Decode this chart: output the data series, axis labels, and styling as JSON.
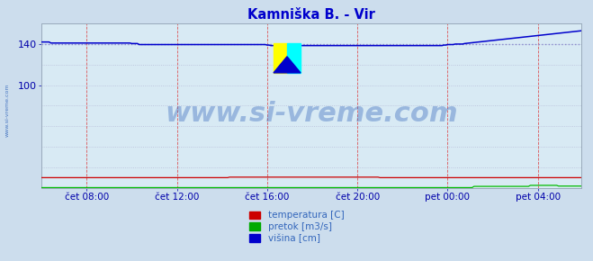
{
  "title": "Kamniška B. - Vir",
  "title_color": "#0000cc",
  "bg_color": "#ccdded",
  "plot_bg_color": "#d8eaf4",
  "grid_color_v": "#dd2222",
  "grid_color_h": "#aaaacc",
  "ylabel_color": "#0000aa",
  "xlabel_color": "#0000aa",
  "ylim": [
    0,
    160
  ],
  "xlim": [
    0,
    287
  ],
  "xtick_positions": [
    24,
    72,
    120,
    168,
    216,
    264
  ],
  "xtick_labels": [
    "čet 08:00",
    "čet 12:00",
    "čet 16:00",
    "čet 20:00",
    "pet 00:00",
    "pet 04:00"
  ],
  "watermark_text": "www.si-vreme.com",
  "watermark_color": "#3366bb",
  "watermark_alpha": 0.38,
  "watermark_fontsize": 22,
  "legend_entries": [
    "temperatura [C]",
    "pretok [m3/s]",
    "višina [cm]"
  ],
  "legend_colors": [
    "#cc0000",
    "#00aa00",
    "#0000cc"
  ],
  "line_color_temp": "#cc0000",
  "line_color_pretok": "#00bb00",
  "line_color_visina": "#0000cc",
  "dotted_color": "#8888cc",
  "left_label": "www.si-vreme.com",
  "left_label_color": "#3366bb",
  "n_points": 288,
  "visina_base": 140.0,
  "temp_base": 10.0,
  "pretok_base": 0.3
}
